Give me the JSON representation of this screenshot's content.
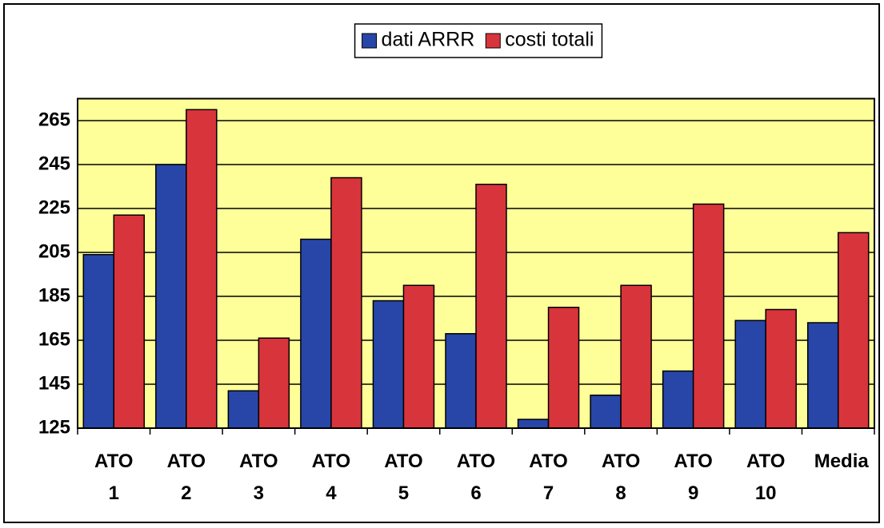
{
  "chart_data": {
    "type": "bar",
    "categories": [
      "ATO 1",
      "ATO 2",
      "ATO 3",
      "ATO 4",
      "ATO 5",
      "ATO 6",
      "ATO 7",
      "ATO 8",
      "ATO 9",
      "ATO 10",
      "Media"
    ],
    "series": [
      {
        "name": "dati ARRR",
        "color": "#2846a8",
        "values": [
          204,
          245,
          142,
          211,
          183,
          168,
          129,
          140,
          151,
          174,
          173
        ]
      },
      {
        "name": "costi totali",
        "color": "#d8343c",
        "values": [
          222,
          270,
          166,
          239,
          190,
          236,
          180,
          190,
          227,
          179,
          214
        ]
      }
    ],
    "ylim": [
      125,
      275
    ],
    "yticks": [
      125,
      145,
      165,
      185,
      205,
      225,
      245,
      265
    ],
    "grid": true,
    "legend": "top"
  }
}
